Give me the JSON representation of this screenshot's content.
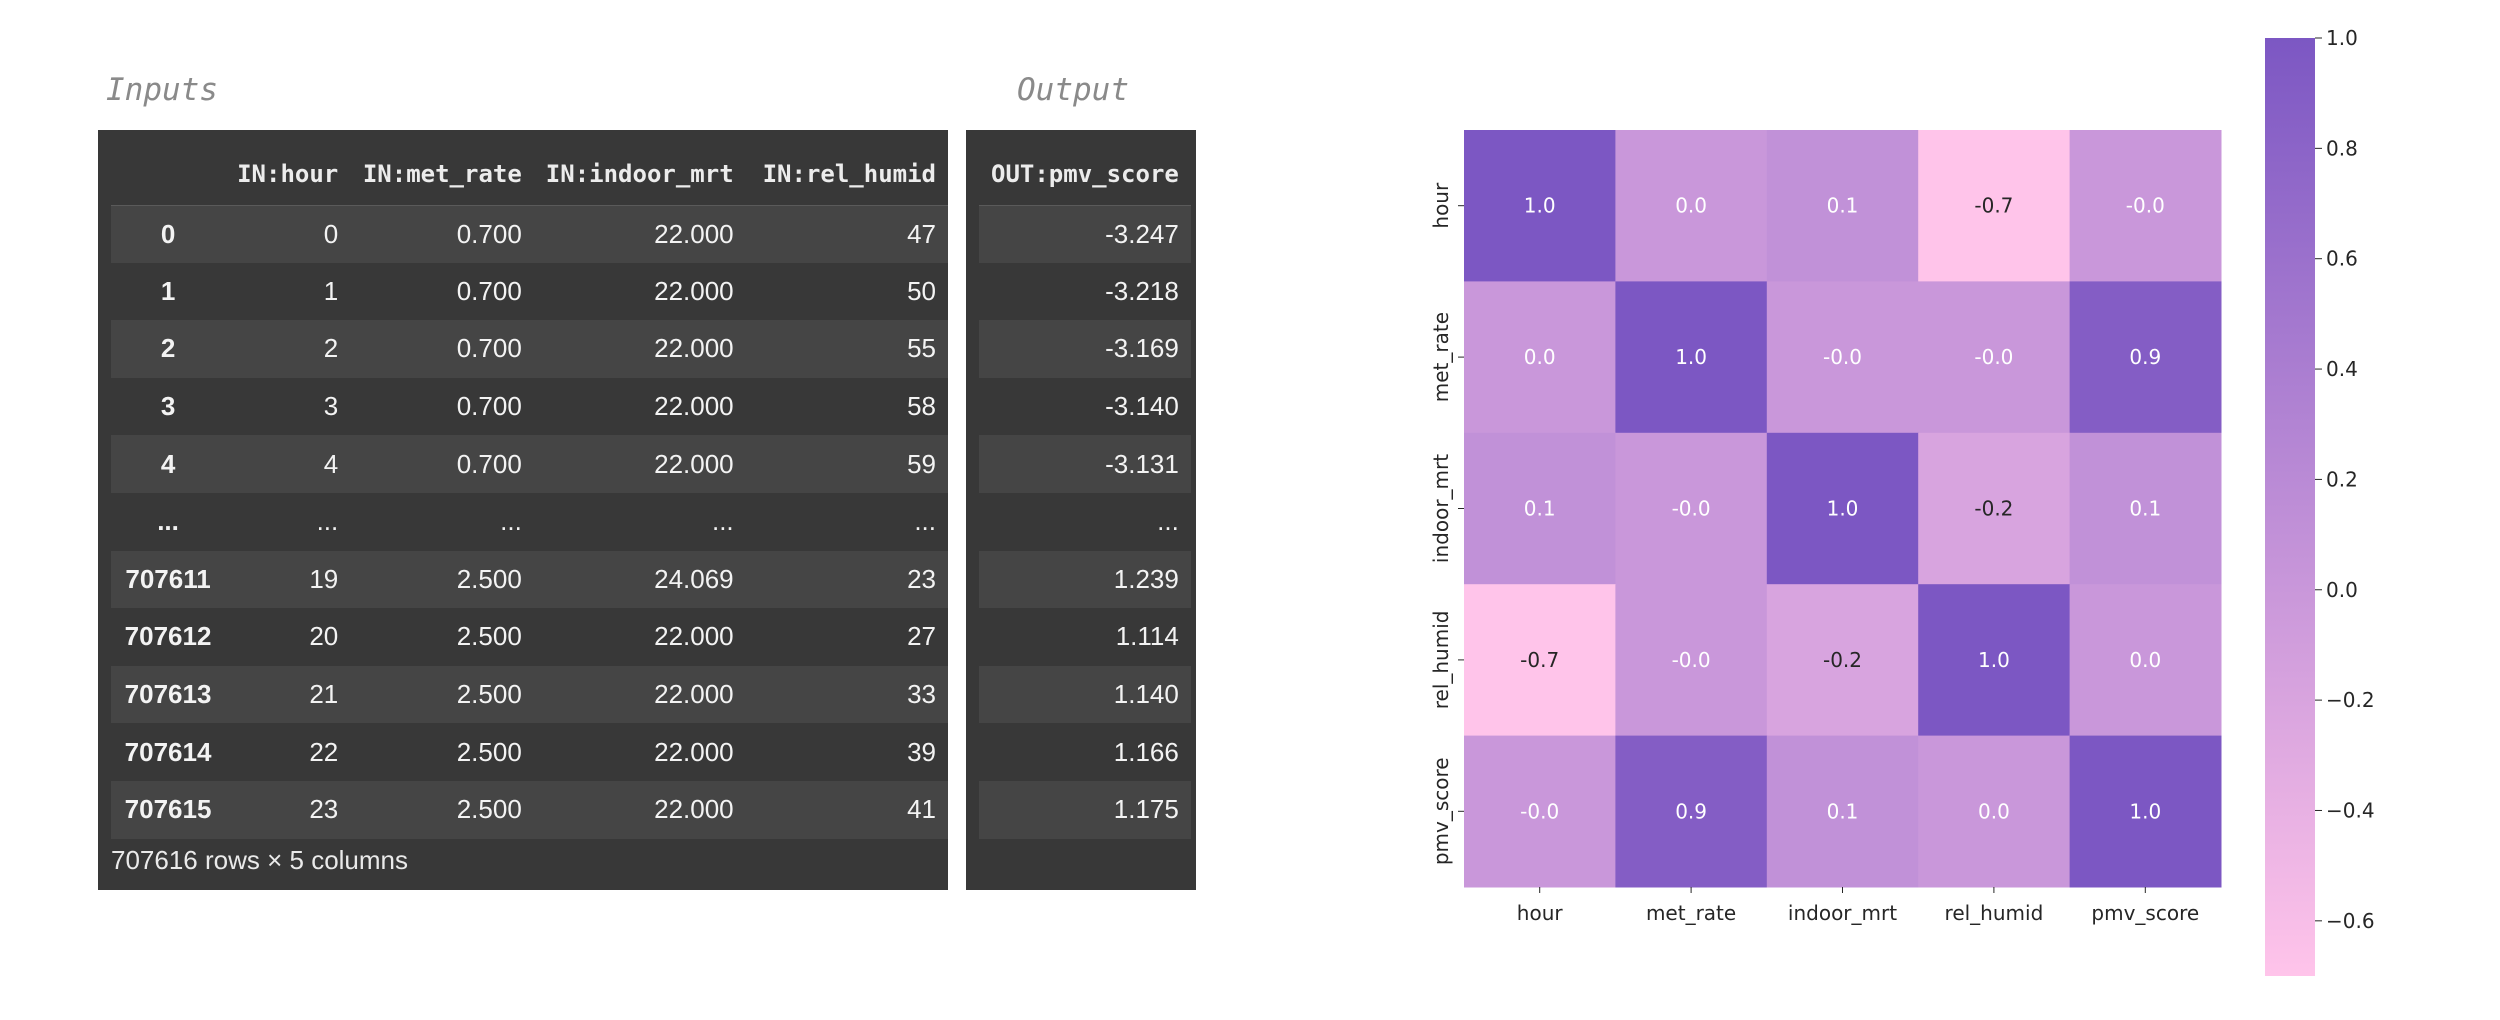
{
  "inputs_title": "Inputs",
  "output_title": "Output",
  "inputs_table": {
    "columns": [
      "",
      "IN:hour",
      "IN:met_rate",
      "IN:indoor_mrt",
      "IN:rel_humid"
    ],
    "rows": [
      [
        "0",
        "0",
        "0.700",
        "22.000",
        "47"
      ],
      [
        "1",
        "1",
        "0.700",
        "22.000",
        "50"
      ],
      [
        "2",
        "2",
        "0.700",
        "22.000",
        "55"
      ],
      [
        "3",
        "3",
        "0.700",
        "22.000",
        "58"
      ],
      [
        "4",
        "4",
        "0.700",
        "22.000",
        "59"
      ],
      [
        "...",
        "...",
        "...",
        "...",
        "..."
      ],
      [
        "707611",
        "19",
        "2.500",
        "24.069",
        "23"
      ],
      [
        "707612",
        "20",
        "2.500",
        "22.000",
        "27"
      ],
      [
        "707613",
        "21",
        "2.500",
        "22.000",
        "33"
      ],
      [
        "707614",
        "22",
        "2.500",
        "22.000",
        "39"
      ],
      [
        "707615",
        "23",
        "2.500",
        "22.000",
        "41"
      ]
    ],
    "footer": "707616 rows × 5 columns"
  },
  "output_table": {
    "columns": [
      "OUT:pmv_score"
    ],
    "rows": [
      [
        "-3.247"
      ],
      [
        "-3.218"
      ],
      [
        "-3.169"
      ],
      [
        "-3.140"
      ],
      [
        "-3.131"
      ],
      [
        "..."
      ],
      [
        "1.239"
      ],
      [
        "1.114"
      ],
      [
        "1.140"
      ],
      [
        "1.166"
      ],
      [
        "1.175"
      ]
    ]
  },
  "chart_data": {
    "type": "heatmap",
    "x_labels": [
      "hour",
      "met_rate",
      "indoor_mrt",
      "rel_humid",
      "pmv_score"
    ],
    "y_labels": [
      "hour",
      "met_rate",
      "indoor_mrt",
      "rel_humid",
      "pmv_score"
    ],
    "values": [
      [
        1.0,
        0.0,
        0.1,
        -0.7,
        -0.0
      ],
      [
        0.0,
        1.0,
        -0.0,
        -0.0,
        0.9
      ],
      [
        0.1,
        -0.0,
        1.0,
        -0.2,
        0.1
      ],
      [
        -0.7,
        -0.0,
        -0.2,
        1.0,
        0.0
      ],
      [
        -0.0,
        0.9,
        0.1,
        0.0,
        1.0
      ]
    ],
    "cell_labels": [
      [
        "1.0",
        "0.0",
        "0.1",
        "-0.7",
        "-0.0"
      ],
      [
        "0.0",
        "1.0",
        "-0.0",
        "-0.0",
        "0.9"
      ],
      [
        "0.1",
        "-0.0",
        "1.0",
        "-0.2",
        "0.1"
      ],
      [
        "-0.7",
        "-0.0",
        "-0.2",
        "1.0",
        "0.0"
      ],
      [
        "-0.0",
        "0.9",
        "0.1",
        "0.0",
        "1.0"
      ]
    ],
    "vmin": -0.7,
    "vmax": 1.0,
    "colormap": [
      "#ffc4ea",
      "#7c57c3"
    ],
    "colorbar_ticks": [
      1.0,
      0.8,
      0.6,
      0.4,
      0.2,
      0.0,
      -0.2,
      -0.4,
      -0.6
    ],
    "colorbar_tick_labels": [
      "1.0",
      "0.8",
      "0.6",
      "0.4",
      "0.2",
      "0.0",
      "−0.2",
      "−0.4",
      "−0.6"
    ]
  }
}
